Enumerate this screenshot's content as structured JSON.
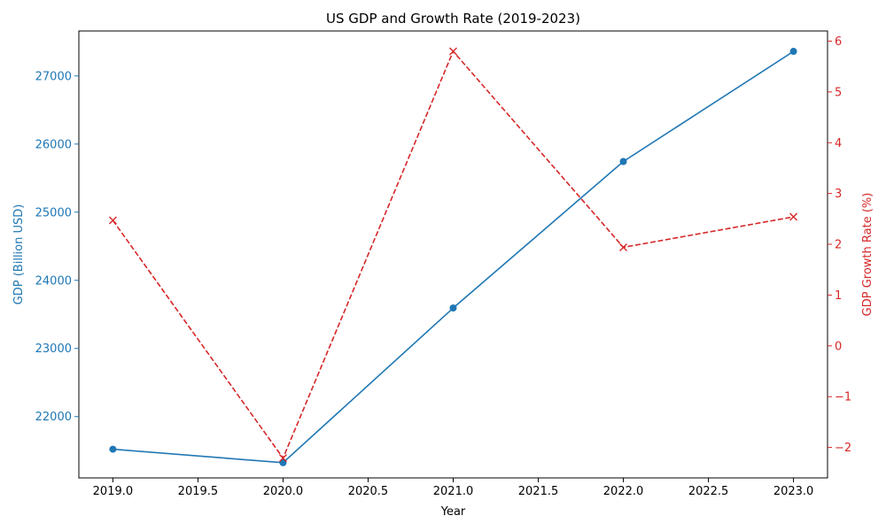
{
  "chart_data": {
    "type": "line",
    "title": "US GDP and Growth Rate (2019-2023)",
    "xlabel": "Year",
    "ylabel_left": "GDP (Billion USD)",
    "ylabel_right": "GDP Growth Rate (%)",
    "x": [
      2019,
      2020,
      2021,
      2022,
      2023
    ],
    "xlim": [
      2018.8,
      2023.2
    ],
    "x_ticks": [
      2019.0,
      2019.5,
      2020.0,
      2020.5,
      2021.0,
      2021.5,
      2022.0,
      2022.5,
      2023.0
    ],
    "x_tick_labels": [
      "2019.0",
      "2019.5",
      "2020.0",
      "2020.5",
      "2021.0",
      "2021.5",
      "2022.0",
      "2022.5",
      "2023.0"
    ],
    "ylim_left": [
      21100,
      27660
    ],
    "y_ticks_left": [
      22000,
      23000,
      24000,
      25000,
      26000,
      27000
    ],
    "y_tick_labels_left": [
      "22000",
      "23000",
      "24000",
      "25000",
      "26000",
      "27000"
    ],
    "ylim_right": [
      -2.6,
      6.2
    ],
    "y_ticks_right": [
      -2,
      -1,
      0,
      1,
      2,
      3,
      4,
      5,
      6
    ],
    "y_tick_labels_right": [
      "−2",
      "−1",
      "0",
      "1",
      "2",
      "3",
      "4",
      "5",
      "6"
    ],
    "series": [
      {
        "axis": "left",
        "values": [
          21521,
          21323,
          23594,
          25744,
          27361
        ],
        "color": "#1f77b4",
        "style": "solid",
        "marker": "circle"
      },
      {
        "axis": "right",
        "values": [
          2.47,
          -2.21,
          5.8,
          1.94,
          2.54
        ],
        "color": "#d62728",
        "style": "dashed",
        "marker": "x"
      }
    ],
    "grid": false,
    "legend": "none"
  }
}
